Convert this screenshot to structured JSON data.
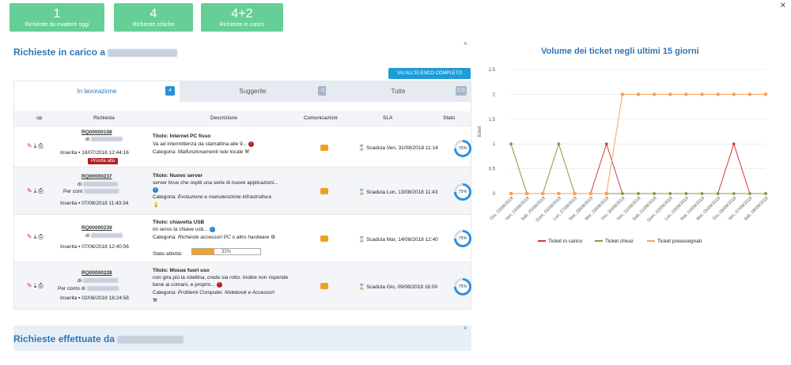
{
  "stats": [
    {
      "value": "1",
      "label": "Richieste da evadere oggi"
    },
    {
      "value": "4",
      "label": "Richieste critiche"
    },
    {
      "value": "4+2",
      "label": "Richieste in carico"
    }
  ],
  "section1": {
    "title": "Richieste in carico a"
  },
  "section2": {
    "title": "Richieste effettuate da"
  },
  "full_list_button": "VAI ALL'ELENCO COMPLETO",
  "tabs": [
    {
      "label": "In lavorazione",
      "badge": "4"
    },
    {
      "label": "Suggerite",
      "badge": "0"
    },
    {
      "label": "Tutte",
      "badge": "171"
    }
  ],
  "columns": {
    "op": "op",
    "richiesta": "Richiesta",
    "descrizione": "Descrizione",
    "comunicazioni": "Comunicazioni",
    "sla": "SLA",
    "stato": "Stato"
  },
  "rows": [
    {
      "id": "RQ00000108",
      "di": "di",
      "per_conto": "",
      "inserita": "Inserita",
      "date": "18/07/2018 12:44:16",
      "priority": "Priorità alta",
      "title": "Titolo: Internet PC fisso",
      "desc": "Va ad intermittenza da stamattina alle 9...",
      "category": "Categoria:",
      "category_value": "Malfunzionamenti rete locale",
      "sla": "Scaduta Ven, 31/08/2018 11:14",
      "gauge": "75%"
    },
    {
      "id": "RQ00000237",
      "di": "di",
      "per_conto": "Per cont",
      "inserita": "Inserita",
      "date": "07/08/2018 11:43:34",
      "priority": "",
      "title": "Titolo: Nuovo server",
      "desc": "server linux che ospiti una serie di nuove applicazioni...",
      "category": "Categoria:",
      "category_value": "Evoluzione e manutenzione infrastruttura",
      "sla": "Scaduta Lun, 13/08/2018 11:43",
      "gauge": "75%"
    },
    {
      "id": "RQ00000239",
      "di": "di",
      "per_conto": "",
      "inserita": "Inserita",
      "date": "07/08/2018 12:40:56",
      "priority": "",
      "title": "Titolo: chiavetta USB",
      "desc": "mi servo la chiave usb...",
      "category": "Categoria:",
      "category_value": "Richieste accessori PC o altro hardware",
      "activity_label": "Stato attività:",
      "activity": "33%",
      "sla": "Scaduta Mar, 14/08/2018 12:40",
      "gauge": "75%"
    },
    {
      "id": "RQ00000228",
      "di": "di",
      "per_conto": "Per conto di",
      "inserita": "Inserita",
      "date": "02/08/2018 18:24:58",
      "priority": "",
      "title": "Titolo: Mosue fuori uso",
      "desc": "non gira più la rotellina, credo sia rotto. Inoltre non risponde bene ai comani, e proprio...",
      "category": "Categoria:",
      "category_value": "Problemi Computer, Notebook e Accessori",
      "sla": "Scaduta Gio, 09/08/2018 16:00",
      "gauge": "75%"
    }
  ],
  "colors": {
    "accent": "#2d76b6",
    "tile": "#66cf97",
    "red": "#d23a3a",
    "green": "#7da03c",
    "orange": "#f5a25d"
  },
  "chart_data": {
    "type": "line",
    "title": "Volume dei ticket negli ultimi 15 giorni",
    "ylabel": "ticket",
    "ylim": [
      0,
      2.5
    ],
    "yticks": [
      "0",
      "0.5",
      "1",
      "1.5",
      "2",
      "2.5"
    ],
    "categories": [
      "Gio, 23/08/2018",
      "Ven, 24/08/2018",
      "Sab, 25/08/2018",
      "Dom, 26/08/2018",
      "Lun, 27/08/2018",
      "Mar, 28/08/2018",
      "Mer, 29/08/2018",
      "Gio, 30/08/2018",
      "Ven, 31/08/2018",
      "Sab, 01/09/2018",
      "Dom, 02/09/2018",
      "Lun, 03/09/2018",
      "Mar, 04/09/2018",
      "Mer, 05/09/2018",
      "Gio, 06/09/2018",
      "Ven, 07/09/2018",
      "Sab, 08/09/2018"
    ],
    "series": [
      {
        "name": "Ticket in carico",
        "color": "#d23a3a",
        "values": [
          0,
          0,
          0,
          0,
          0,
          0,
          1,
          0,
          0,
          0,
          0,
          0,
          0,
          0,
          1,
          0,
          0
        ]
      },
      {
        "name": "Ticket chiusi",
        "color": "#7da03c",
        "values": [
          1,
          0,
          0,
          1,
          0,
          0,
          0,
          0,
          0,
          0,
          0,
          0,
          0,
          0,
          0,
          0,
          0
        ]
      },
      {
        "name": "Ticket preassegnati",
        "color": "#f5a25d",
        "values": [
          0,
          0,
          0,
          0,
          0,
          0,
          0,
          2,
          2,
          2,
          2,
          2,
          2,
          2,
          2,
          2,
          2
        ]
      }
    ],
    "legend": "bottom"
  }
}
